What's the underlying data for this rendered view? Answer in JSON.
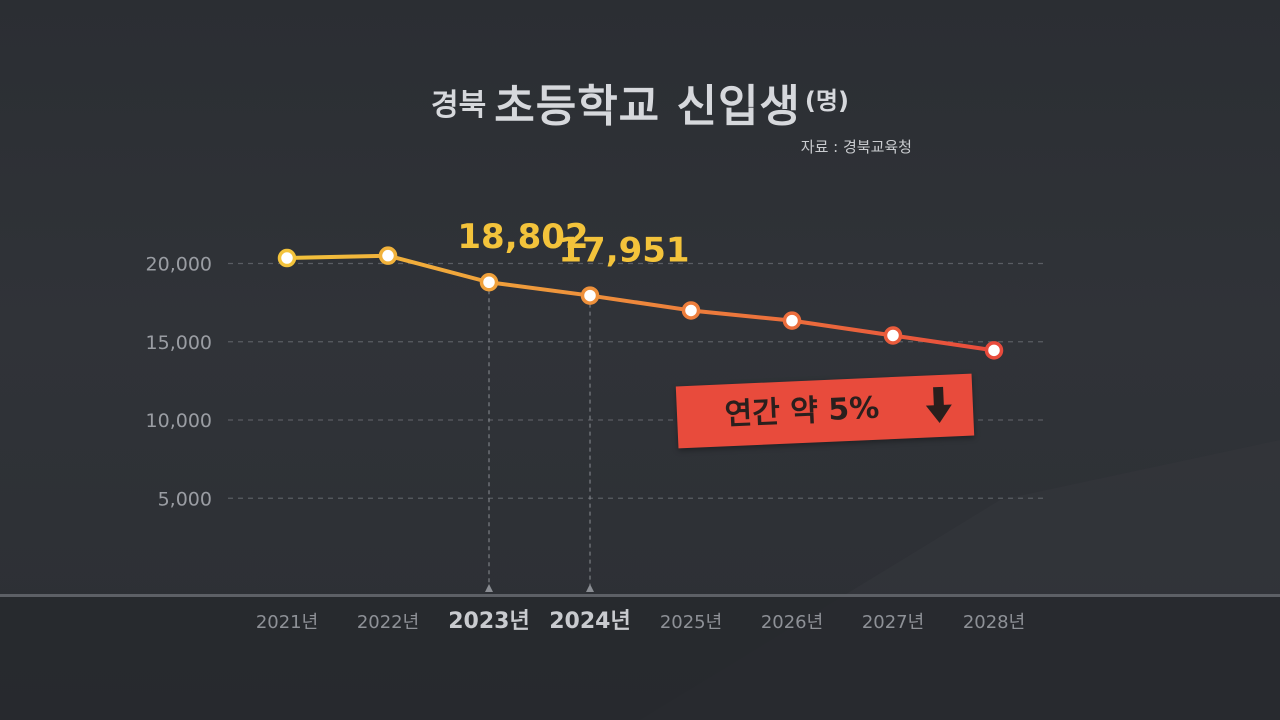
{
  "header": {
    "title_prefix": "경북",
    "title_main": "초등학교 신입생",
    "title_unit": "(명)",
    "source": "자료 : 경북교육청"
  },
  "badge": {
    "text": "연간 약 5%",
    "arrow_icon": "down-arrow-icon",
    "color": "#e84b3c"
  },
  "colors": {
    "line_start": "#f3c33b",
    "line_end": "#e84b3c",
    "label": "#f3c33b"
  },
  "chart_data": {
    "type": "line",
    "title": "경북 초등학교 신입생(명)",
    "categories": [
      "2021년",
      "2022년",
      "2023년",
      "2024년",
      "2025년",
      "2026년",
      "2027년",
      "2028년"
    ],
    "highlighted_categories": [
      "2023년",
      "2024년"
    ],
    "series": [
      {
        "values": [
          20350,
          20500,
          18802,
          17951,
          17000,
          16350,
          15400,
          14450
        ]
      }
    ],
    "data_labels": [
      {
        "category": "2023년",
        "text": "18,802"
      },
      {
        "category": "2024년",
        "text": "17,951"
      }
    ],
    "y_ticks": [
      "5,000",
      "10,000",
      "15,000",
      "20,000"
    ],
    "y_tick_values": [
      5000,
      10000,
      15000,
      20000
    ],
    "ylim": [
      0,
      25000
    ],
    "grid": true,
    "legend": "none"
  }
}
